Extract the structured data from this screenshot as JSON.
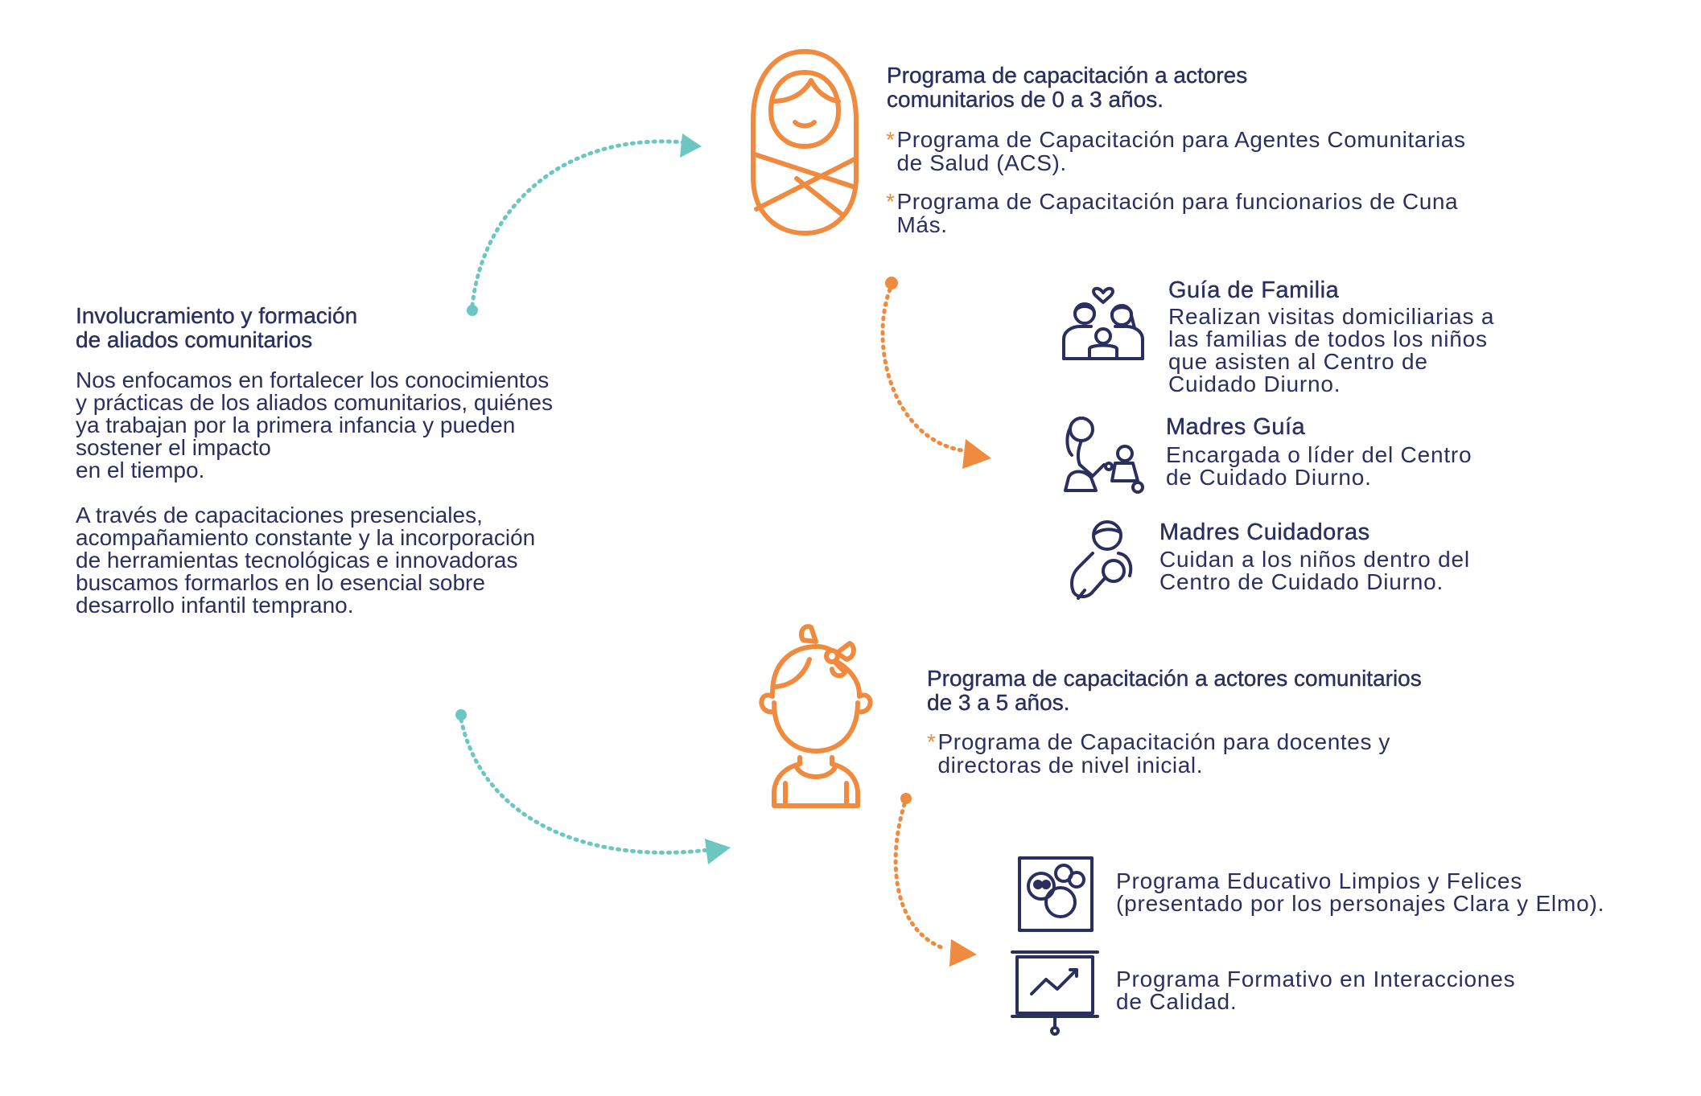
{
  "intro": {
    "title": "Involucramiento y formación\nde aliados comunitarios",
    "paragraph1": "Nos enfocamos en fortalecer los conocimientos\ny prácticas de los aliados comunitarios, quiénes\nya trabajan por la primera infancia y pueden\nsostener el impacto\nen el tiempo.",
    "paragraph2": "A través de capacitaciones presenciales,\nacompañamiento constante y la incorporación\nde herramientas tecnológicas e innovadoras\nbuscamos formarlos en lo esencial sobre\ndesarrollo infantil temprano."
  },
  "program_0_3": {
    "title": "Programa de capacitación a actores\ncomunitarios de 0 a 3 años.",
    "bullets": [
      "Programa de Capacitación para Agentes Comunitarias\nde Salud (ACS).",
      "Programa de Capacitación para funcionarios de Cuna\nMás."
    ],
    "bullet_marker": "*",
    "icon": "swaddled-baby-icon"
  },
  "roles": [
    {
      "title": "Guía de Familia",
      "description": "Realizan visitas domiciliarias a\nlas familias de todos los niños\nque asisten al Centro de\nCuidado Diurno.",
      "icon": "family-icon"
    },
    {
      "title": "Madres Guía",
      "description": "Encargada o líder del Centro\nde Cuidado Diurno.",
      "icon": "mother-child-playing-icon"
    },
    {
      "title": "Madres Cuidadoras",
      "description": "Cuidan a los niños dentro del\nCentro de Cuidado Diurno.",
      "icon": "mother-holding-baby-icon"
    }
  ],
  "program_3_5": {
    "title": "Programa de capacitación a actores comunitarios\nde 3 a 5 años.",
    "bullets": [
      "Programa de Capacitación para docentes y\ndirectoras de nivel inicial."
    ],
    "bullet_marker": "*",
    "icon": "girl-with-bow-icon"
  },
  "programs": [
    {
      "text": "Programa Educativo Limpios y Felices\n(presentado por los personajes Clara y Elmo).",
      "icon": "characters-frame-icon"
    },
    {
      "text": "Programa Formativo en Interacciones\nde Calidad.",
      "icon": "presentation-board-icon"
    }
  ],
  "colors": {
    "navy": "#2b2f5e",
    "orange": "#ef8a3e",
    "teal": "#6cc6c1"
  }
}
